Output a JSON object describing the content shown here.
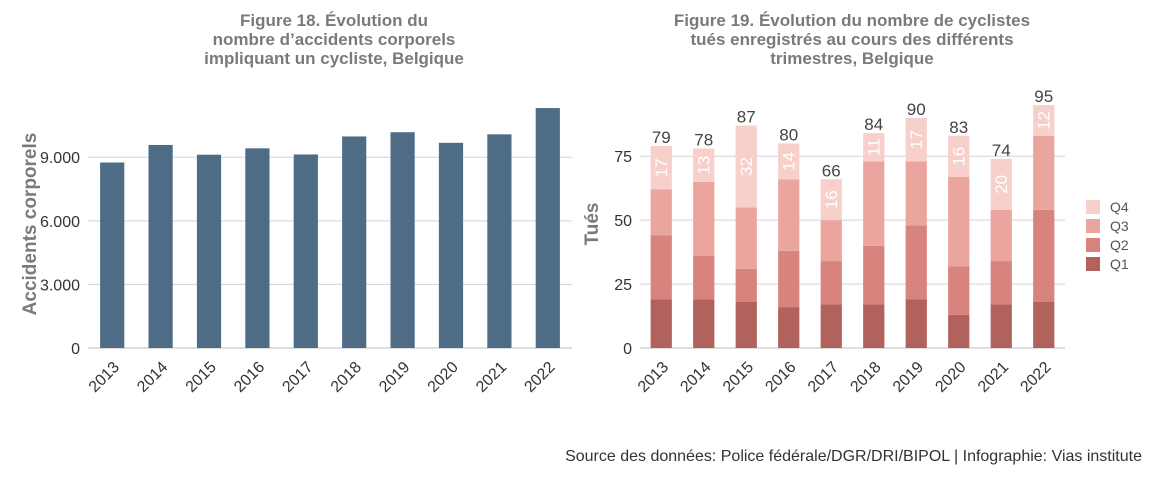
{
  "chart_data": [
    {
      "type": "bar",
      "title": [
        "Figure 18. Évolution du",
        "nombre d’accidents corporels",
        "impliquant un cycliste, Belgique"
      ],
      "xlabel": "",
      "ylabel": "Accidents corporels",
      "categories": [
        "2013",
        "2014",
        "2015",
        "2016",
        "2017",
        "2018",
        "2019",
        "2020",
        "2021",
        "2022"
      ],
      "values": [
        8750,
        9580,
        9120,
        9420,
        9130,
        9980,
        10180,
        9680,
        10080,
        11320
      ],
      "ylim": [
        0,
        11700
      ],
      "yticks": [
        0,
        3000,
        6000,
        9000
      ],
      "ytick_labels": [
        "0",
        "3.000",
        "6.000",
        "9.000"
      ],
      "color": "#4f6c86",
      "grid": true
    },
    {
      "type": "bar",
      "stacked": true,
      "title": [
        "Figure 19. Évolution du nombre de cyclistes",
        "tués enregistrés au cours des différents",
        "trimestres, Belgique"
      ],
      "xlabel": "",
      "ylabel": "Tués",
      "categories": [
        "2013",
        "2014",
        "2015",
        "2016",
        "2017",
        "2018",
        "2019",
        "2020",
        "2021",
        "2022"
      ],
      "series": [
        {
          "name": "Q1",
          "values": [
            19,
            19,
            18,
            16,
            17,
            17,
            19,
            13,
            17,
            18
          ],
          "color": "#b1625d"
        },
        {
          "name": "Q2",
          "values": [
            25,
            17,
            13,
            22,
            17,
            23,
            29,
            19,
            17,
            36
          ],
          "color": "#d8837d"
        },
        {
          "name": "Q3",
          "values": [
            18,
            29,
            24,
            28,
            16,
            33,
            25,
            35,
            20,
            29
          ],
          "color": "#eba59f"
        },
        {
          "name": "Q4",
          "values": [
            17,
            13,
            32,
            14,
            16,
            11,
            17,
            16,
            20,
            12
          ],
          "color": "#f7cfcb"
        }
      ],
      "totals": [
        79,
        78,
        87,
        80,
        66,
        84,
        90,
        83,
        74,
        95
      ],
      "ylim": [
        0,
        97
      ],
      "yticks": [
        0,
        25,
        50,
        75
      ],
      "ytick_labels": [
        "0",
        "25",
        "50",
        "75"
      ],
      "legend": "right",
      "grid": true
    }
  ],
  "footer": {
    "source": "Source des données: Police fédérale/DGR/DRI/BIPOL | Infographie: Vias institute"
  }
}
